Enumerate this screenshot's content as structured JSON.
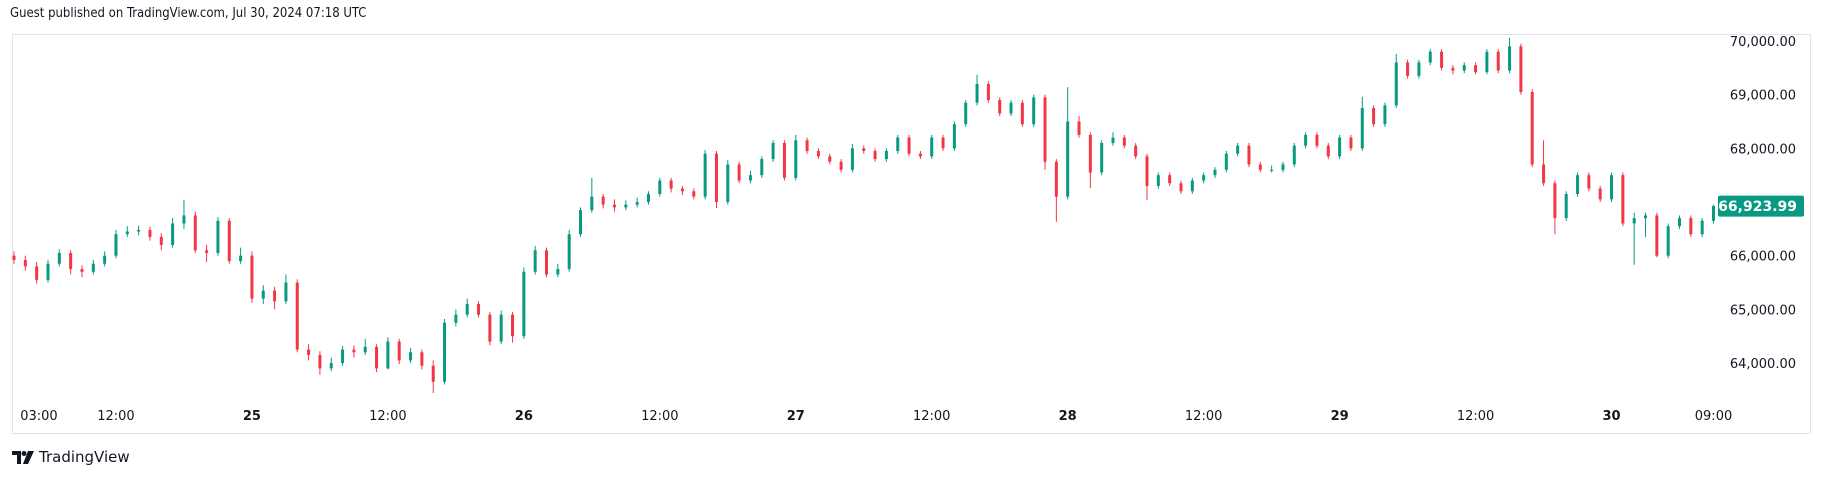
{
  "header": {
    "published": "Guest published on TradingView.com, Jul 30, 2024 07:18 UTC"
  },
  "footer": {
    "brand": "TradingView",
    "logo_icon": "tradingview-logo-icon"
  },
  "colors": {
    "up": "#089981",
    "down": "#F23645",
    "last_price_bg": "#089981",
    "border": "#e0e3eb",
    "text": "#131722"
  },
  "chart_data": {
    "type": "candlestick",
    "interval": "1h (approx., resampled)",
    "ylim": [
      63300,
      70100
    ],
    "price_ticks": [
      "70,000.00",
      "69,000.00",
      "68,000.00",
      "66,000.00",
      "65,000.00",
      "64,000.00"
    ],
    "price_tick_values": [
      70000,
      69000,
      68000,
      66000,
      65000,
      64000
    ],
    "last_price": 66923.99,
    "last_price_label": "66,923.99",
    "time_ticks": [
      {
        "label": "03:00",
        "hour": 2.2,
        "bold": false
      },
      {
        "label": "12:00",
        "hour": 9,
        "bold": false
      },
      {
        "label": "25",
        "hour": 21,
        "bold": true
      },
      {
        "label": "12:00",
        "hour": 33,
        "bold": false
      },
      {
        "label": "26",
        "hour": 45,
        "bold": true
      },
      {
        "label": "12:00",
        "hour": 57,
        "bold": false
      },
      {
        "label": "27",
        "hour": 69,
        "bold": true
      },
      {
        "label": "12:00",
        "hour": 81,
        "bold": false
      },
      {
        "label": "28",
        "hour": 93,
        "bold": true
      },
      {
        "label": "12:00",
        "hour": 105,
        "bold": false
      },
      {
        "label": "29",
        "hour": 117,
        "bold": true
      },
      {
        "label": "12:00",
        "hour": 129,
        "bold": false
      },
      {
        "label": "30",
        "hour": 141,
        "bold": true
      },
      {
        "label": "09:00",
        "hour": 150,
        "bold": false
      }
    ],
    "ohlc": [
      [
        66000,
        66080,
        65850,
        65920
      ],
      [
        65920,
        66000,
        65720,
        65800
      ],
      [
        65800,
        65880,
        65480,
        65550
      ],
      [
        65550,
        65920,
        65500,
        65850
      ],
      [
        65850,
        66120,
        65800,
        66050
      ],
      [
        66050,
        66100,
        65650,
        65750
      ],
      [
        65750,
        65820,
        65600,
        65700
      ],
      [
        65700,
        65920,
        65650,
        65850
      ],
      [
        65850,
        66080,
        65800,
        66000
      ],
      [
        66000,
        66480,
        65950,
        66400
      ],
      [
        66400,
        66550,
        66350,
        66450
      ],
      [
        66450,
        66560,
        66380,
        66480
      ],
      [
        66480,
        66540,
        66280,
        66350
      ],
      [
        66350,
        66420,
        66100,
        66200
      ],
      [
        66200,
        66700,
        66150,
        66600
      ],
      [
        66600,
        67040,
        66500,
        66750
      ],
      [
        66750,
        66820,
        66050,
        66100
      ],
      [
        66100,
        66200,
        65880,
        66050
      ],
      [
        66050,
        66720,
        66000,
        66650
      ],
      [
        66650,
        66700,
        65850,
        65900
      ],
      [
        65900,
        66150,
        65850,
        66000
      ],
      [
        66000,
        66080,
        65120,
        65200
      ],
      [
        65200,
        65450,
        65100,
        65350
      ],
      [
        65350,
        65420,
        65000,
        65150
      ],
      [
        65150,
        65650,
        65100,
        65500
      ],
      [
        65500,
        65560,
        64200,
        64250
      ],
      [
        64250,
        64350,
        64050,
        64150
      ],
      [
        64150,
        64220,
        63780,
        63900
      ],
      [
        63900,
        64100,
        63850,
        64000
      ],
      [
        64000,
        64320,
        63950,
        64250
      ],
      [
        64250,
        64330,
        64100,
        64200
      ],
      [
        64200,
        64450,
        64150,
        64300
      ],
      [
        64300,
        64350,
        63830,
        63900
      ],
      [
        63900,
        64480,
        63880,
        64400
      ],
      [
        64400,
        64450,
        63980,
        64050
      ],
      [
        64050,
        64280,
        64000,
        64200
      ],
      [
        64200,
        64250,
        63880,
        63950
      ],
      [
        63950,
        64050,
        63440,
        63650
      ],
      [
        63650,
        64820,
        63600,
        64750
      ],
      [
        64750,
        65000,
        64680,
        64900
      ],
      [
        64900,
        65200,
        64850,
        65100
      ],
      [
        65100,
        65150,
        64850,
        64900
      ],
      [
        64900,
        64950,
        64330,
        64400
      ],
      [
        64400,
        64980,
        64350,
        64900
      ],
      [
        64900,
        64950,
        64380,
        64500
      ],
      [
        64500,
        65780,
        64450,
        65700
      ],
      [
        65700,
        66180,
        65650,
        66100
      ],
      [
        66100,
        66150,
        65600,
        65650
      ],
      [
        65650,
        65850,
        65600,
        65750
      ],
      [
        65750,
        66480,
        65700,
        66400
      ],
      [
        66400,
        66900,
        66350,
        66850
      ],
      [
        66850,
        67450,
        66800,
        67100
      ],
      [
        67100,
        67150,
        66880,
        66950
      ],
      [
        66950,
        67050,
        66820,
        66900
      ],
      [
        66900,
        67030,
        66850,
        66950
      ],
      [
        66950,
        67080,
        66900,
        67000
      ],
      [
        67000,
        67200,
        66950,
        67150
      ],
      [
        67150,
        67450,
        67100,
        67400
      ],
      [
        67400,
        67450,
        67180,
        67250
      ],
      [
        67250,
        67300,
        67130,
        67200
      ],
      [
        67200,
        67250,
        67050,
        67100
      ],
      [
        67100,
        67970,
        67050,
        67900
      ],
      [
        67900,
        67950,
        66890,
        67000
      ],
      [
        67000,
        67780,
        66950,
        67700
      ],
      [
        67700,
        67750,
        67350,
        67400
      ],
      [
        67400,
        67580,
        67350,
        67500
      ],
      [
        67500,
        67850,
        67450,
        67800
      ],
      [
        67800,
        68150,
        67750,
        68100
      ],
      [
        68100,
        68150,
        67400,
        67450
      ],
      [
        67450,
        68250,
        67400,
        68150
      ],
      [
        68150,
        68200,
        67900,
        67950
      ],
      [
        67950,
        68000,
        67800,
        67850
      ],
      [
        67850,
        67900,
        67700,
        67750
      ],
      [
        67750,
        67800,
        67550,
        67600
      ],
      [
        67600,
        68080,
        67550,
        68000
      ],
      [
        68000,
        68050,
        67900,
        67950
      ],
      [
        67950,
        68000,
        67750,
        67800
      ],
      [
        67800,
        68000,
        67750,
        67950
      ],
      [
        67950,
        68250,
        67900,
        68200
      ],
      [
        68200,
        68250,
        67850,
        67900
      ],
      [
        67900,
        67950,
        67800,
        67850
      ],
      [
        67850,
        68250,
        67800,
        68200
      ],
      [
        68200,
        68250,
        67950,
        68000
      ],
      [
        68000,
        68500,
        67950,
        68450
      ],
      [
        68450,
        68900,
        68400,
        68850
      ],
      [
        68850,
        69370,
        68800,
        69200
      ],
      [
        69200,
        69250,
        68850,
        68900
      ],
      [
        68900,
        68950,
        68600,
        68650
      ],
      [
        68650,
        68900,
        68600,
        68850
      ],
      [
        68850,
        68900,
        68400,
        68450
      ],
      [
        68450,
        69000,
        68400,
        68950
      ],
      [
        68950,
        69000,
        67600,
        67750
      ],
      [
        67750,
        67800,
        66630,
        67100
      ],
      [
        67100,
        69140,
        67050,
        68500
      ],
      [
        68500,
        68600,
        68200,
        68250
      ],
      [
        68250,
        68300,
        67260,
        67550
      ],
      [
        67550,
        68150,
        67500,
        68100
      ],
      [
        68100,
        68300,
        68050,
        68200
      ],
      [
        68200,
        68250,
        68000,
        68050
      ],
      [
        68050,
        68100,
        67800,
        67850
      ],
      [
        67850,
        67900,
        67040,
        67300
      ],
      [
        67300,
        67550,
        67250,
        67500
      ],
      [
        67500,
        67550,
        67300,
        67350
      ],
      [
        67350,
        67400,
        67150,
        67200
      ],
      [
        67200,
        67450,
        67150,
        67400
      ],
      [
        67400,
        67550,
        67350,
        67500
      ],
      [
        67500,
        67650,
        67450,
        67600
      ],
      [
        67600,
        67950,
        67550,
        67900
      ],
      [
        67900,
        68100,
        67850,
        68050
      ],
      [
        68050,
        68100,
        67650,
        67700
      ],
      [
        67700,
        67750,
        67550,
        67600
      ],
      [
        67600,
        67680,
        67550,
        67600
      ],
      [
        67600,
        67750,
        67550,
        67700
      ],
      [
        67700,
        68100,
        67650,
        68050
      ],
      [
        68050,
        68300,
        68000,
        68250
      ],
      [
        68250,
        68300,
        68000,
        68050
      ],
      [
        68050,
        68100,
        67800,
        67850
      ],
      [
        67850,
        68250,
        67800,
        68200
      ],
      [
        68200,
        68250,
        67950,
        68000
      ],
      [
        68000,
        68960,
        67950,
        68750
      ],
      [
        68750,
        68800,
        68400,
        68450
      ],
      [
        68450,
        68850,
        68400,
        68800
      ],
      [
        68800,
        69760,
        68750,
        69600
      ],
      [
        69600,
        69650,
        69300,
        69350
      ],
      [
        69350,
        69650,
        69300,
        69600
      ],
      [
        69600,
        69850,
        69550,
        69800
      ],
      [
        69800,
        69850,
        69450,
        69500
      ],
      [
        69500,
        69550,
        69380,
        69450
      ],
      [
        69450,
        69600,
        69400,
        69550
      ],
      [
        69550,
        69600,
        69380,
        69420
      ],
      [
        69420,
        69850,
        69380,
        69800
      ],
      [
        69800,
        69850,
        69400,
        69450
      ],
      [
        69450,
        70060,
        69400,
        69900
      ],
      [
        69900,
        69950,
        69000,
        69050
      ],
      [
        69050,
        69100,
        67650,
        67700
      ],
      [
        67700,
        68150,
        67300,
        67350
      ],
      [
        67350,
        67400,
        66400,
        66700
      ],
      [
        66700,
        67200,
        66650,
        67150
      ],
      [
        67150,
        67550,
        67100,
        67500
      ],
      [
        67500,
        67550,
        67200,
        67250
      ],
      [
        67250,
        67300,
        67000,
        67050
      ],
      [
        67050,
        67550,
        67000,
        67500
      ],
      [
        67500,
        67550,
        66550,
        66600
      ],
      [
        66600,
        66800,
        65830,
        66700
      ],
      [
        66700,
        66800,
        66350,
        66750
      ],
      [
        66750,
        66800,
        65970,
        66000
      ],
      [
        66000,
        66600,
        65950,
        66550
      ],
      [
        66550,
        66750,
        66500,
        66700
      ],
      [
        66700,
        66750,
        66350,
        66400
      ],
      [
        66400,
        66700,
        66350,
        66650
      ],
      [
        66650,
        66950,
        66600,
        66923.99
      ]
    ]
  }
}
